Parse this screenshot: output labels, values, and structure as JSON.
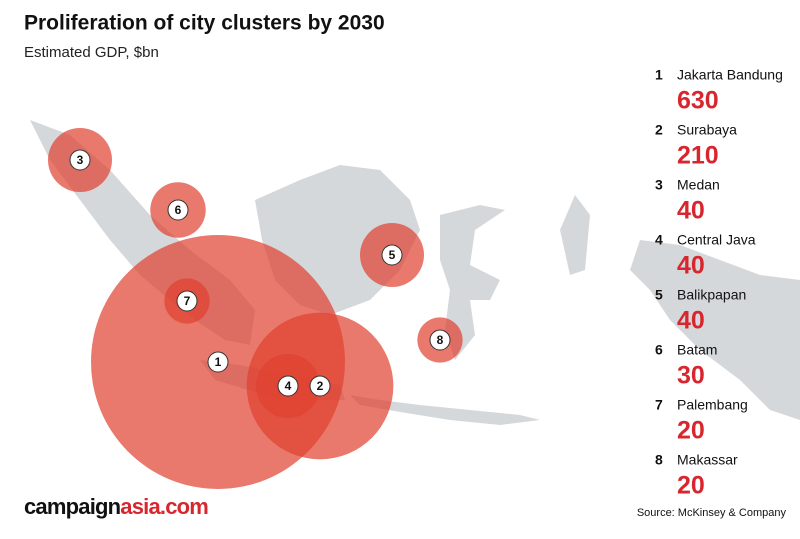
{
  "title": "Proliferation of city clusters by 2030",
  "subtitle": "Estimated GDP, $bn",
  "clusters": [
    {
      "number": 1,
      "name": "Jakarta Bandung",
      "value": 630
    },
    {
      "number": 2,
      "name": "Surabaya",
      "value": 210
    },
    {
      "number": 3,
      "name": "Medan",
      "value": 40
    },
    {
      "number": 4,
      "name": "Central Java",
      "value": 40
    },
    {
      "number": 5,
      "name": "Balikpapan",
      "value": 40
    },
    {
      "number": 6,
      "name": "Batam",
      "value": 30
    },
    {
      "number": 7,
      "name": "Palembang",
      "value": 20
    },
    {
      "number": 8,
      "name": "Makassar",
      "value": 20
    }
  ],
  "logo": {
    "main": "campaign",
    "accent": "asia.com"
  },
  "source": "Source: McKinsey & Company"
}
